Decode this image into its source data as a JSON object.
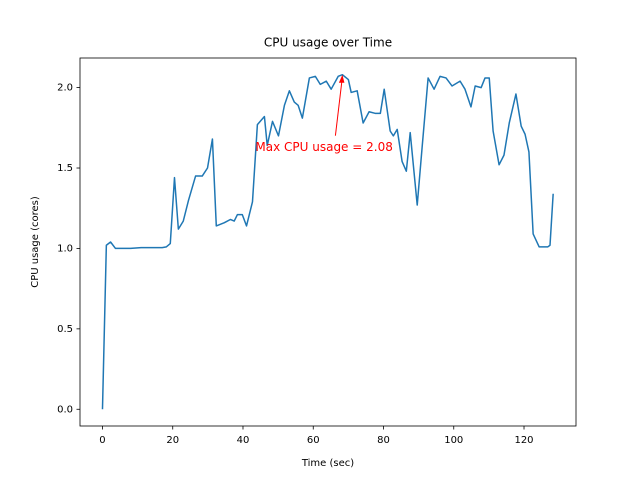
{
  "chart_data": {
    "type": "line",
    "title": "CPU usage over Time",
    "x_label": "Time (sec)",
    "y_label": "CPU usage (cores)",
    "x": [
      0,
      1.1,
      2.3,
      3.7,
      5.5,
      8,
      11,
      14,
      17,
      18.2,
      19.3,
      20.5,
      21.6,
      23,
      24.5,
      26.5,
      28.4,
      29.9,
      31.3,
      32.4,
      34.7,
      36.4,
      37.5,
      38.4,
      39.8,
      41,
      42.7,
      44.1,
      46.1,
      46.9,
      48.4,
      50.1,
      51.8,
      53.2,
      54.6,
      55.7,
      56.9,
      58.9,
      60.6,
      62,
      63.7,
      65.1,
      67.1,
      68.3,
      70,
      70.8,
      72.5,
      74.2,
      75.9,
      77.6,
      79.1,
      80.2,
      81.9,
      82.8,
      83.9,
      85.3,
      86.5,
      87.6,
      89.6,
      91,
      92.7,
      94.4,
      96.1,
      97.8,
      99.5,
      101.8,
      103.2,
      104.9,
      106.1,
      107.8,
      108.9,
      110.1,
      111.2,
      112.9,
      114.3,
      115.8,
      117.7,
      119.2,
      120.3,
      121.4,
      122.6,
      124.3,
      126.8,
      127.4,
      128.3
    ],
    "series": [
      {
        "name": "CPU usage",
        "color": "#1f77b4",
        "values": [
          0,
          1.02,
          1.04,
          1.0,
          1.0,
          1.0,
          1.005,
          1.005,
          1.005,
          1.01,
          1.03,
          1.44,
          1.12,
          1.17,
          1.3,
          1.45,
          1.45,
          1.5,
          1.68,
          1.14,
          1.16,
          1.18,
          1.17,
          1.21,
          1.21,
          1.14,
          1.29,
          1.77,
          1.82,
          1.64,
          1.79,
          1.7,
          1.89,
          1.98,
          1.91,
          1.89,
          1.81,
          2.06,
          2.07,
          2.02,
          2.04,
          1.99,
          2.07,
          2.08,
          2.05,
          1.97,
          1.98,
          1.78,
          1.85,
          1.84,
          1.84,
          1.99,
          1.73,
          1.7,
          1.74,
          1.54,
          1.48,
          1.72,
          1.27,
          1.63,
          2.06,
          1.99,
          2.07,
          2.06,
          2.01,
          2.04,
          1.99,
          1.88,
          2.01,
          2.0,
          2.06,
          2.06,
          1.73,
          1.52,
          1.58,
          1.78,
          1.96,
          1.76,
          1.71,
          1.6,
          1.09,
          1.01,
          1.01,
          1.02,
          1.34
        ]
      }
    ],
    "annotation": "Max CPU usage = 2.08",
    "xlim": [
      -6.4,
      134.8
    ],
    "ylim": [
      -0.104,
      2.184
    ],
    "xticks": [
      0,
      20,
      40,
      60,
      80,
      100,
      120
    ],
    "yticks": [
      {
        "value": 0,
        "label": "0.0"
      },
      {
        "value": 0.5,
        "label": "0.5"
      },
      {
        "value": 1,
        "label": "1.0"
      },
      {
        "value": 1.5,
        "label": "1.5"
      },
      {
        "value": 2,
        "label": "2.0"
      }
    ],
    "grid": false
  }
}
